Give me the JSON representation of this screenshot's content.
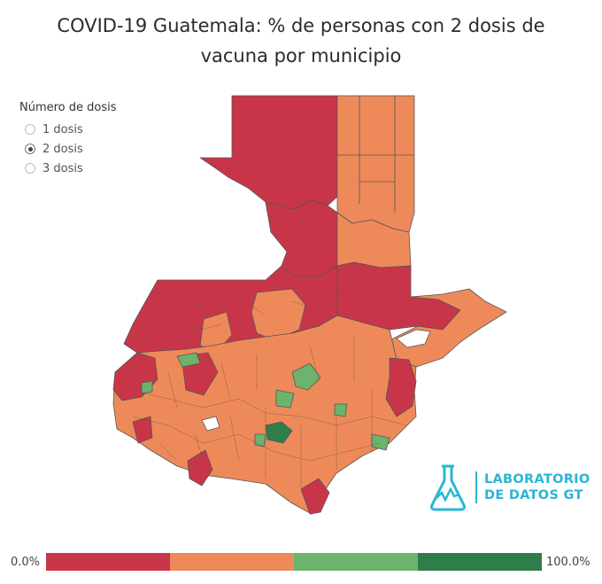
{
  "title": {
    "line1": "COVID-19 Guatemala: % de personas con 2 dosis de",
    "line2": "vacuna por municipio"
  },
  "legend": {
    "heading": "Número de dosis",
    "options": [
      {
        "label": "1 dosis",
        "selected": false
      },
      {
        "label": "2 dosis",
        "selected": true
      },
      {
        "label": "3 dosis",
        "selected": false
      }
    ]
  },
  "scale": {
    "min_label": "0.0%",
    "max_label": "100.0%",
    "colors": [
      "#c93548",
      "#ee8a5a",
      "#6cb36c",
      "#2e7d4a"
    ]
  },
  "map_colors": {
    "red": "#c93548",
    "orange": "#ee8a5a",
    "light_green": "#6cb36c",
    "dark_green": "#2e7d4a",
    "lake": "#ffffff",
    "border": "#555555"
  },
  "logo": {
    "line1": "LABORATORIO",
    "line2": "DE DATOS GT",
    "color": "#29b5d6"
  }
}
